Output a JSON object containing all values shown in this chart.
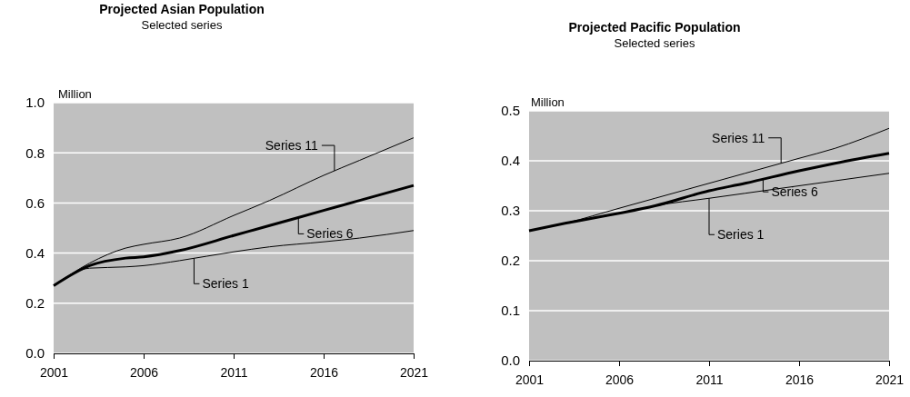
{
  "chart_data": [
    {
      "type": "line",
      "title": "Projected Asian Population",
      "subtitle": "Selected series",
      "ylabel": "Million",
      "x": [
        2001,
        2003,
        2005,
        2006,
        2008,
        2011,
        2013,
        2016,
        2018,
        2021
      ],
      "xlim": [
        2001,
        2021
      ],
      "xticks": [
        2001,
        2006,
        2011,
        2016,
        2021
      ],
      "ylim": [
        0,
        1
      ],
      "yticks": [
        {
          "value": 0,
          "label": "0.0"
        },
        {
          "value": 0.2,
          "label": "0.2"
        },
        {
          "value": 0.4,
          "label": "0.4"
        },
        {
          "value": 0.6,
          "label": "0.6"
        },
        {
          "value": 0.8,
          "label": "0.8"
        },
        {
          "value": 1,
          "label": "1.0"
        }
      ],
      "grid": "y",
      "series": [
        {
          "name": "Series 11",
          "color": "#000000",
          "values": [
            0.27,
            0.36,
            0.42,
            0.435,
            0.46,
            0.55,
            0.61,
            0.71,
            0.77,
            0.86
          ]
        },
        {
          "name": "Series 6",
          "color": "#000000",
          "values": [
            0.27,
            0.35,
            0.38,
            0.385,
            0.41,
            0.47,
            0.51,
            0.57,
            0.61,
            0.67
          ]
        },
        {
          "name": "Series 1",
          "color": "#000000",
          "values": [
            0.27,
            0.34,
            0.345,
            0.35,
            0.37,
            0.405,
            0.425,
            0.445,
            0.46,
            0.49
          ]
        }
      ]
    },
    {
      "type": "line",
      "title": "Projected Pacific Population",
      "subtitle": "Selected series",
      "ylabel": "Million",
      "x": [
        2001,
        2003,
        2006,
        2008,
        2011,
        2013,
        2016,
        2018,
        2021
      ],
      "xlim": [
        2001,
        2021
      ],
      "xticks": [
        2001,
        2006,
        2011,
        2016,
        2021
      ],
      "ylim": [
        0,
        0.5
      ],
      "yticks": [
        {
          "value": 0,
          "label": "0.0"
        },
        0.1,
        0.2,
        0.3,
        0.4,
        0.5
      ],
      "grid": "y",
      "series": [
        {
          "name": "Series 11",
          "color": "#000000",
          "values": [
            0.26,
            0.275,
            0.305,
            0.325,
            0.355,
            0.375,
            0.405,
            0.425,
            0.465
          ]
        },
        {
          "name": "Series 6",
          "color": "#000000",
          "values": [
            0.26,
            0.275,
            0.295,
            0.31,
            0.34,
            0.355,
            0.38,
            0.395,
            0.415
          ]
        },
        {
          "name": "Series 1",
          "color": "#000000",
          "values": [
            0.26,
            0.275,
            0.295,
            0.31,
            0.325,
            0.335,
            0.35,
            0.36,
            0.375
          ]
        }
      ]
    }
  ]
}
